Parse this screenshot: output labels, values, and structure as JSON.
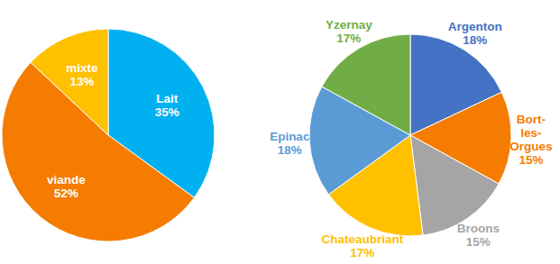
{
  "chart_data": [
    {
      "type": "pie",
      "categories": [
        "Lait",
        "viande",
        "mixte"
      ],
      "values": [
        35,
        52,
        13
      ],
      "value_labels": [
        "35%",
        "52%",
        "13%"
      ],
      "colors": [
        "#00b0f0",
        "#f57c00",
        "#ffc000"
      ],
      "data_labels": true
    },
    {
      "type": "pie",
      "categories": [
        "Argenton",
        "Bort-les-Orgues",
        "Broons",
        "Chateaubriant",
        "Epinac",
        "Yzernay"
      ],
      "values": [
        18,
        15,
        15,
        17,
        18,
        17
      ],
      "value_labels": [
        "18%",
        "15%",
        "15%",
        "17%",
        "18%",
        "17%"
      ],
      "colors": [
        "#4472c4",
        "#f57c00",
        "#a5a5a5",
        "#ffc000",
        "#5b9bd5",
        "#70ad47"
      ],
      "data_labels": true
    }
  ]
}
